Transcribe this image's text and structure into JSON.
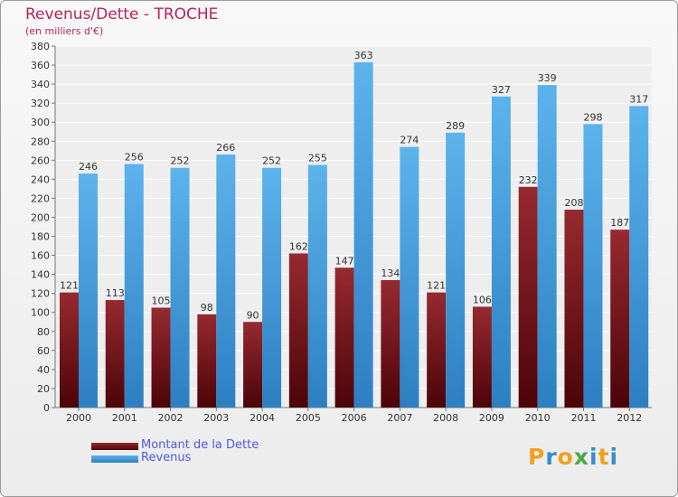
{
  "chart_data": {
    "type": "bar",
    "title": "Revenus/Dette - TROCHE",
    "subtitle": "(en milliers d'€)",
    "categories": [
      "2000",
      "2001",
      "2002",
      "2003",
      "2004",
      "2005",
      "2006",
      "2007",
      "2008",
      "2009",
      "2010",
      "2011",
      "2012"
    ],
    "series": [
      {
        "name": "Montant de la Dette",
        "color": "#6e0f12",
        "values": [
          121,
          113,
          105,
          98,
          90,
          162,
          147,
          134,
          121,
          106,
          232,
          208,
          187
        ]
      },
      {
        "name": "Revenus",
        "color": "#4aa3e0",
        "values": [
          246,
          256,
          252,
          266,
          252,
          255,
          363,
          274,
          289,
          327,
          339,
          298,
          317
        ]
      }
    ],
    "ylim": [
      0,
      380
    ],
    "yticks": [
      0,
      20,
      40,
      60,
      80,
      100,
      120,
      140,
      160,
      180,
      200,
      220,
      240,
      260,
      280,
      300,
      320,
      340,
      360,
      380
    ],
    "grid": true,
    "legend_position": "bottom-left"
  },
  "logo": {
    "text": "Proxiti",
    "letters": [
      "P",
      "r",
      "o",
      "x",
      "i",
      "t",
      "i"
    ],
    "colors": [
      "#f0a020",
      "#3a8ad0",
      "#f0a020",
      "#49a847",
      "#3a8ad0",
      "#f0a020",
      "#3a8ad0"
    ]
  }
}
